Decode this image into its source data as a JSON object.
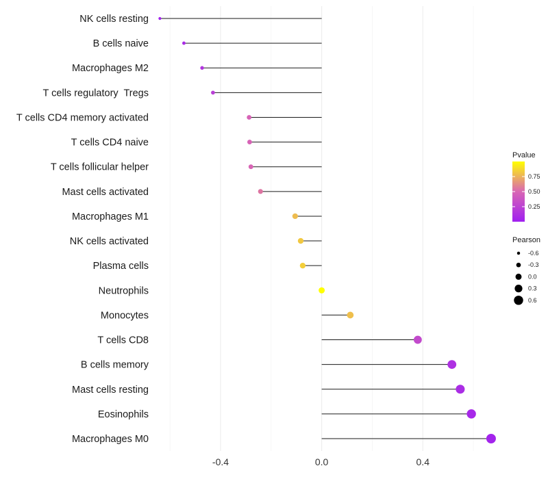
{
  "chart_data": {
    "type": "lollipop",
    "x_ticks": [
      -0.4,
      0.0,
      0.4
    ],
    "x_tick_labels": [
      "-0.4",
      "0.0",
      "0.4"
    ],
    "xlim": [
      -0.66,
      0.7
    ],
    "categories": [
      {
        "name": "NK cells resting",
        "pearson": -0.64,
        "pvalue": 0.02
      },
      {
        "name": "B cells naive",
        "pearson": -0.545,
        "pvalue": 0.08
      },
      {
        "name": "Macrophages M2",
        "pearson": -0.473,
        "pvalue": 0.15
      },
      {
        "name": "T cells regulatory  Tregs",
        "pearson": -0.43,
        "pvalue": 0.22
      },
      {
        "name": "T cells CD4 memory activated",
        "pearson": -0.287,
        "pvalue": 0.48
      },
      {
        "name": "T cells CD4 naive",
        "pearson": -0.285,
        "pvalue": 0.48
      },
      {
        "name": "T cells follicular helper",
        "pearson": -0.28,
        "pvalue": 0.49
      },
      {
        "name": "Mast cells activated",
        "pearson": -0.242,
        "pvalue": 0.55
      },
      {
        "name": "Macrophages M1",
        "pearson": -0.105,
        "pvalue": 0.78
      },
      {
        "name": "NK cells activated",
        "pearson": -0.083,
        "pvalue": 0.82
      },
      {
        "name": "Plasma cells",
        "pearson": -0.075,
        "pvalue": 0.84
      },
      {
        "name": "Neutrophils",
        "pearson": 0.0,
        "pvalue": 1.0
      },
      {
        "name": "Monocytes",
        "pearson": 0.113,
        "pvalue": 0.79
      },
      {
        "name": "T cells CD8",
        "pearson": 0.38,
        "pvalue": 0.3
      },
      {
        "name": "B cells memory",
        "pearson": 0.515,
        "pvalue": 0.12
      },
      {
        "name": "Mast cells resting",
        "pearson": 0.548,
        "pvalue": 0.09
      },
      {
        "name": "Eosinophils",
        "pearson": 0.592,
        "pvalue": 0.06
      },
      {
        "name": "Macrophages M0",
        "pearson": 0.67,
        "pvalue": 0.03
      }
    ],
    "legend_pvalue": {
      "title": "Pvalue",
      "breaks": [
        0.25,
        0.5,
        0.75
      ],
      "labels": [
        "0.25",
        "0.50",
        "0.75"
      ],
      "range": [
        0.0,
        1.0
      ],
      "color_low": "#a020f0",
      "color_mid": "#d966b4",
      "color_high": "#ffff00"
    },
    "legend_pearson": {
      "title": "Pearson",
      "breaks": [
        -0.6,
        -0.3,
        0.0,
        0.3,
        0.6
      ],
      "labels": [
        "-0.6",
        "-0.3",
        "0.0",
        "0.3",
        "0.6"
      ]
    }
  }
}
